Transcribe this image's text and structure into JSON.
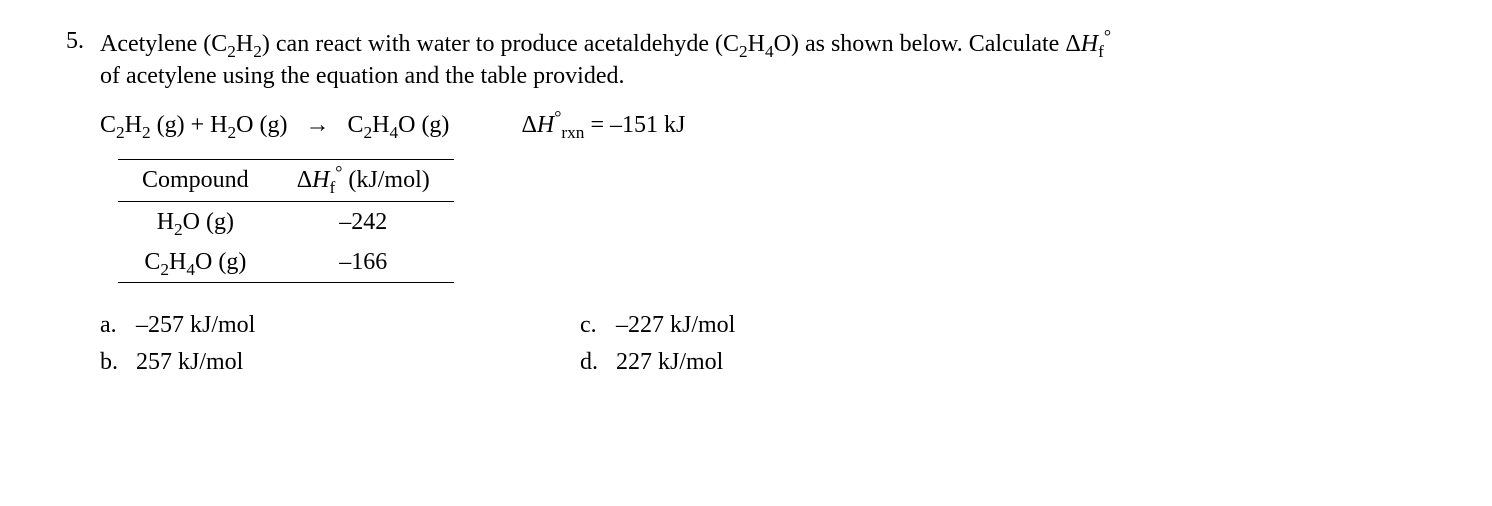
{
  "question": {
    "number": "5.",
    "prompt_pre": "Acetylene (C",
    "c2h2_sub1": "2",
    "prompt_h": "H",
    "c2h2_sub2": "2",
    "prompt_mid1": ") can react with water to produce acetaldehyde (C",
    "c2h4o_sub1": "2",
    "prompt_h2": "H",
    "c2h4o_sub2": "4",
    "prompt_o": "O) as shown below. Calculate Δ",
    "prompt_H": "H",
    "prompt_f": "f",
    "prompt_deg": "°",
    "prompt_line2": "of acetylene using the equation and the table provided."
  },
  "equation": {
    "lhs1_c": "C",
    "lhs1_s1": "2",
    "lhs1_h": "H",
    "lhs1_s2": "2",
    "lhs1_state": " (g) + H",
    "lhs2_s1": "2",
    "lhs2_tail": "O (g)",
    "arrow": "→",
    "rhs_c": "C",
    "rhs_s1": "2",
    "rhs_h": "H",
    "rhs_s2": "4",
    "rhs_tail": "O (g)",
    "dh_delta": "Δ",
    "dh_H": "H",
    "dh_deg": "°",
    "dh_rxn": "rxn",
    "dh_eq": " = ",
    "dh_val": "–151 kJ"
  },
  "table": {
    "col1": "Compound",
    "col2_pre": "Δ",
    "col2_H": "H",
    "col2_f": "f",
    "col2_deg": "°",
    "col2_tail": " (kJ/mol)",
    "rows": [
      {
        "c_pre": "H",
        "c_s1": "2",
        "c_tail": "O (g)",
        "val": "–242"
      },
      {
        "c_pre": "C",
        "c_s1": "2",
        "c_mid": "H",
        "c_s2": "4",
        "c_tail": "O (g)",
        "val": "–166"
      }
    ]
  },
  "answers": {
    "a_letter": "a.",
    "a_text": "–257 kJ/mol",
    "b_letter": "b.",
    "b_text": "257 kJ/mol",
    "c_letter": "c.",
    "c_text": "–227 kJ/mol",
    "d_letter": "d.",
    "d_text": "227 kJ/mol"
  }
}
